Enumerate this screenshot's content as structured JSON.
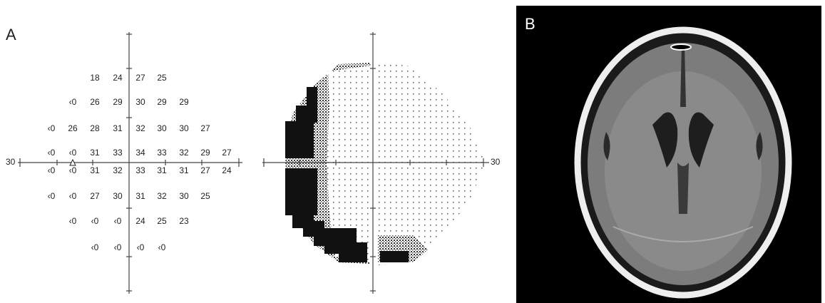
{
  "panel_a": {
    "label": "A",
    "rows": [
      [
        "18",
        "24",
        "27",
        "25"
      ],
      [
        "‹0",
        "26",
        "29",
        "30",
        "29",
        "29"
      ],
      [
        "‹0",
        "26",
        "28",
        "31",
        "32",
        "30",
        "30",
        "27"
      ],
      [
        "‹0",
        "‹0",
        "31",
        "33",
        "34",
        "33",
        "32",
        "29",
        "27"
      ],
      [
        "‹0",
        "‹0",
        "31",
        "32",
        "33",
        "31",
        "31",
        "27",
        "24"
      ],
      [
        "‹0",
        "‹0",
        "27",
        "30",
        "31",
        "32",
        "30",
        "25"
      ],
      [
        "‹0",
        "‹0",
        "‹0",
        "24",
        "25",
        "23"
      ],
      [
        "‹0",
        "‹0",
        "‹0",
        "‹0"
      ]
    ],
    "left_axis_label": "30",
    "right_axis_label": "30"
  },
  "panel_b": {
    "label": "B"
  }
}
